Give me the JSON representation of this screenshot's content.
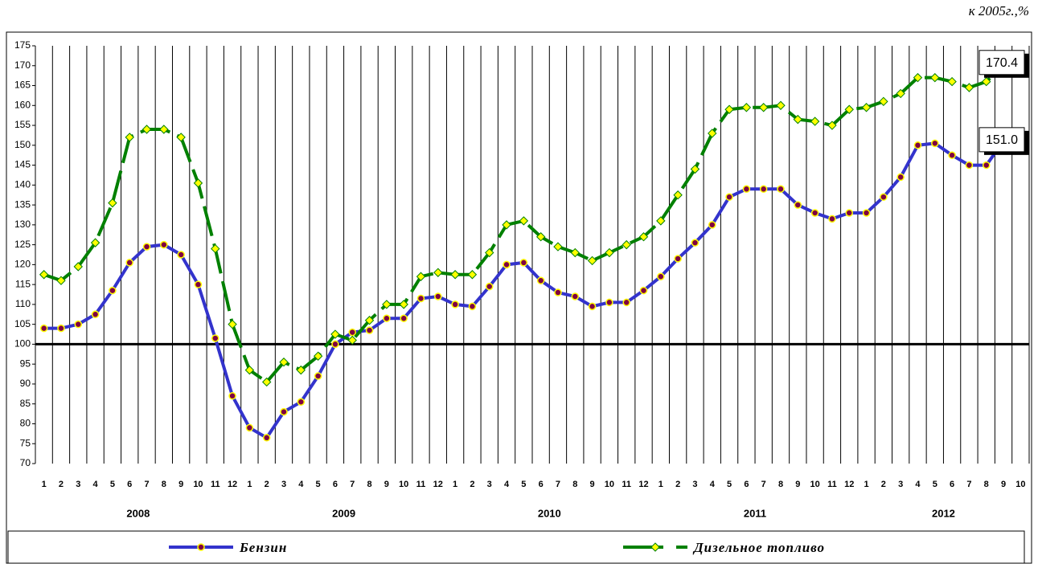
{
  "chart_data": {
    "type": "line",
    "unit": "к 2005г.,%",
    "categories": [
      "1",
      "2",
      "3",
      "4",
      "5",
      "6",
      "7",
      "8",
      "9",
      "10",
      "11",
      "12",
      "1",
      "2",
      "3",
      "4",
      "5",
      "6",
      "7",
      "8",
      "9",
      "10",
      "11",
      "12",
      "1",
      "2",
      "3",
      "4",
      "5",
      "6",
      "7",
      "8",
      "9",
      "10",
      "11",
      "12",
      "1",
      "2",
      "3",
      "4",
      "5",
      "6",
      "7",
      "8",
      "9",
      "10",
      "11",
      "12",
      "1",
      "2",
      "3",
      "4",
      "5",
      "6",
      "7",
      "8",
      "9",
      "10"
    ],
    "year_labels": [
      "2008",
      "2009",
      "2010",
      "2011",
      "2012"
    ],
    "series": [
      {
        "name": "Бензин",
        "color": "#3333cc",
        "marker_color": "#800040",
        "values": [
          104,
          104,
          105,
          107.5,
          113.5,
          120.5,
          124.5,
          125,
          122.5,
          115,
          101.5,
          87,
          79,
          76.5,
          83,
          85.5,
          92,
          100,
          103,
          103.5,
          106.5,
          106.5,
          111.5,
          112,
          110,
          109.5,
          114.5,
          120,
          120.5,
          116,
          113,
          112,
          109.5,
          110.5,
          110.5,
          113.5,
          117,
          121.5,
          125.5,
          130,
          137,
          139,
          139,
          139,
          135,
          133,
          131.5,
          133,
          133,
          137,
          142,
          150,
          150.5,
          147.5,
          145,
          145,
          151,
          151
        ]
      },
      {
        "name": "Дизельное топливо",
        "color": "#008000",
        "marker_color": "#ffff00",
        "values": [
          117.5,
          116,
          119.5,
          125.5,
          135.5,
          152,
          154,
          154,
          152,
          140.5,
          124,
          105,
          93.5,
          90.5,
          95.5,
          93.5,
          97,
          102.5,
          101,
          106,
          110,
          110,
          117,
          118,
          117.5,
          117.5,
          123,
          130,
          131,
          127,
          124.5,
          123,
          121,
          123,
          125,
          127,
          131,
          137.5,
          144,
          153,
          159,
          159.5,
          159.5,
          160,
          156.5,
          156,
          155,
          159,
          159.5,
          161,
          163,
          167,
          167,
          166,
          164.5,
          166,
          170,
          170.4
        ]
      }
    ],
    "annotations": [
      {
        "value": 170.4,
        "label": "170.4"
      },
      {
        "value": 151.0,
        "label": "151.0"
      }
    ],
    "ylim": [
      70,
      175
    ],
    "yticks": [
      70,
      75,
      80,
      85,
      90,
      95,
      100,
      105,
      110,
      115,
      120,
      125,
      130,
      135,
      140,
      145,
      150,
      155,
      160,
      165,
      170,
      175
    ],
    "baseline": 100,
    "grid": true
  }
}
